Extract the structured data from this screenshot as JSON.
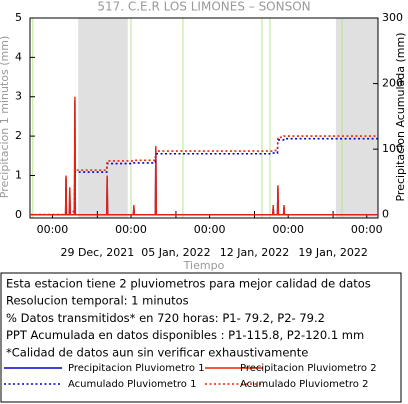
{
  "chart_data": {
    "type": "line",
    "title": "517. C.E.R LOS LIMONES – SONSON",
    "ylabel": "Precipitacion 1 minutos (mm)",
    "y2label": "Precipitacion Acumulada (mm)",
    "xlabel": "Tiempo",
    "xlim": [
      "2021-12-23T00:00",
      "2022-01-23T00:00"
    ],
    "xticks": [
      {
        "value": "2021-12-25T00:00",
        "label": "00:00"
      },
      {
        "value": "2022-01-01T00:00",
        "label": "00:00"
      },
      {
        "value": "2022-01-08T00:00",
        "label": "00:00"
      },
      {
        "value": "2022-01-15T00:00",
        "label": "00:00"
      },
      {
        "value": "2022-01-22T00:00",
        "label": "00:00"
      }
    ],
    "xticks_major": [
      {
        "value": "2021-12-29T00:00",
        "label": "29 Dec, 2021"
      },
      {
        "value": "2022-01-05T00:00",
        "label": "05 Jan, 2022"
      },
      {
        "value": "2022-01-12T00:00",
        "label": "12 Jan, 2022"
      },
      {
        "value": "2022-01-19T00:00",
        "label": "19 Jan, 2022"
      }
    ],
    "ylim": [
      -0.08,
      5
    ],
    "yticks": [
      0,
      1,
      2,
      3,
      4,
      5
    ],
    "y2lim": [
      -5,
      300
    ],
    "y2ticks": [
      0,
      100,
      200,
      300
    ],
    "shaded_ranges": [
      [
        "2021-12-27T07:00",
        "2021-12-31T17:00"
      ],
      [
        "2022-01-19T06:00",
        "2022-01-23T00:00"
      ]
    ],
    "shade_color": "#e0e0e0",
    "vlines": [
      "2021-12-23T06:00",
      "2022-01-01T00:00",
      "2022-01-05T15:00",
      "2022-01-12T16:00",
      "2022-01-13T09:00",
      "2022-01-19T19:00"
    ],
    "vline_color": "#b8e68a",
    "x": [
      "2021-12-23T00:00",
      "2021-12-26T04:00",
      "2021-12-26T05:00",
      "2021-12-26T06:00",
      "2021-12-26T12:00",
      "2021-12-26T13:00",
      "2021-12-26T14:00",
      "2021-12-26T23:00",
      "2021-12-27T00:00",
      "2021-12-27T01:00",
      "2021-12-29T20:00",
      "2021-12-29T21:00",
      "2021-12-29T22:00",
      "2022-01-01T05:00",
      "2022-01-01T06:00",
      "2022-01-01T07:00",
      "2022-01-03T04:00",
      "2022-01-03T05:00",
      "2022-01-03T06:00",
      "2022-01-13T15:00",
      "2022-01-13T16:00",
      "2022-01-13T17:00",
      "2022-01-14T01:00",
      "2022-01-14T02:00",
      "2022-01-14T03:00",
      "2022-01-14T14:00",
      "2022-01-14T15:00",
      "2022-01-14T16:00",
      "2022-01-23T00:00"
    ],
    "series": [
      {
        "name": "Precipitacion Pluviometro 1",
        "color": "#0000cc",
        "dash": "solid",
        "values": [
          0,
          0,
          0.95,
          0,
          0,
          0.65,
          0,
          0,
          2.9,
          0,
          0,
          0.95,
          0,
          0,
          0.2,
          0,
          0,
          1.7,
          0,
          0,
          0.2,
          0,
          0,
          0.7,
          0,
          0,
          0.2,
          0,
          0
        ]
      },
      {
        "name": "Precipitacion Pluviometro 2",
        "color": "#ee2200",
        "dash": "solid",
        "values": [
          0,
          0,
          1,
          0,
          0,
          0.7,
          0,
          0,
          3,
          0,
          0,
          1,
          0,
          0,
          0.25,
          0,
          0,
          1.75,
          0,
          0,
          0.25,
          0,
          0,
          0.75,
          0,
          0,
          0.25,
          0,
          0
        ]
      },
      {
        "name": "Acumulado Pluviometro 1",
        "color": "#0000cc",
        "dash": "dotted",
        "axis": "y2",
        "values": [
          0,
          0,
          3,
          3,
          3,
          5,
          5,
          5,
          65,
          65,
          65,
          78,
          78,
          78,
          79,
          79,
          79,
          93,
          93,
          93,
          94,
          94,
          94,
          114,
          114,
          114,
          116,
          116,
          116
        ]
      },
      {
        "name": "Acumulado Pluviometro 2",
        "color": "#ee2200",
        "dash": "dotted",
        "axis": "y2",
        "values": [
          0,
          0,
          3,
          3,
          3,
          5,
          5,
          5,
          68,
          68,
          68,
          82,
          82,
          82,
          83,
          83,
          83,
          97,
          97,
          97,
          98,
          98,
          98,
          118,
          118,
          118,
          120,
          120,
          120
        ]
      }
    ],
    "notes": [
      "Esta estacion tiene 2 pluviometros para mejor calidad de datos",
      "Resolucion temporal: 1 minutos",
      "% Datos transmitidos* en 720 horas: P1- 79.2, P2- 79.2",
      "PPT Acumulada en datos disponibles : P1-115.8, P2-120.1 mm",
      "*Calidad de datos aun sin verificar exhaustivamente"
    ]
  }
}
